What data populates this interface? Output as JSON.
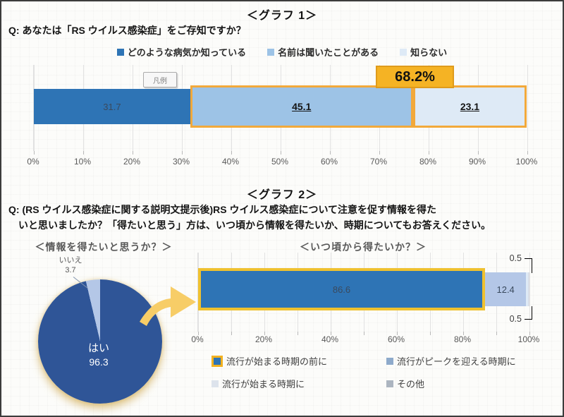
{
  "sections": {
    "graph1": {
      "heading": "＜グラフ 1＞",
      "question": "Q: あなたは「RS ウイルス感染症」をご存知ですか？",
      "legend_box_label": "凡例"
    },
    "graph2": {
      "heading": "＜グラフ 2＞",
      "question": "Q: (RS ウイルス感染症に関する説明文提示後)RS ウイルス感染症について注意を促す情報を得た\n　いと思いましたか？「得たいと思う」方は、いつ頃から情報を得たいか、時期についてもお答えください。"
    }
  },
  "colors": {
    "dark_blue": "#2E74B5",
    "medium_blue": "#9DC3E6",
    "pale_blue": "#DEEAF6",
    "periwinkle": "#B4C7E7",
    "pie_navy": "#2F5597",
    "highlight_orange": "#F5B324",
    "highlight_border": "#F2A93B",
    "gold_arrow": "#F7CD67"
  },
  "chart_data": [
    {
      "type": "bar",
      "orientation": "horizontal-stacked",
      "title": "＜グラフ 1＞",
      "legend_position": "top",
      "xlim": [
        0,
        100
      ],
      "xticks": [
        "0%",
        "10%",
        "20%",
        "30%",
        "40%",
        "50%",
        "60%",
        "70%",
        "80%",
        "90%",
        "100%"
      ],
      "series": [
        {
          "name": "どのような病気か知っている",
          "value": 31.7,
          "label": "31.7",
          "color": "#2E74B5",
          "emphasis": false,
          "highlight": false
        },
        {
          "name": "名前は聞いたことがある",
          "value": 45.1,
          "label": "45.1",
          "color": "#9DC3E6",
          "emphasis": true,
          "highlight": true
        },
        {
          "name": "知らない",
          "value": 23.1,
          "label": "23.1",
          "color": "#DEEAF6",
          "emphasis": true,
          "highlight": true
        }
      ],
      "highlight": {
        "label": "68.2%",
        "covers": [
          "名前は聞いたことがある",
          "知らない"
        ],
        "fill": "#F5B324",
        "border": "#DF9B1C"
      }
    },
    {
      "type": "pie",
      "title": "＜情報を得たいと思うか？＞",
      "start_angle_deg": 0,
      "clockwise": true,
      "slices": [
        {
          "label": "はい",
          "value": 96.3,
          "color": "#2F5597",
          "label_position": "inside"
        },
        {
          "label": "いいえ",
          "value": 3.7,
          "color": "#B4C7E7",
          "label_position": "outside-top"
        }
      ]
    },
    {
      "type": "bar",
      "orientation": "horizontal-stacked",
      "title": "＜いつ頃から得たいか？＞",
      "legend_position": "bottom",
      "xlim": [
        0,
        100
      ],
      "xticks": [
        "0%",
        "20%",
        "40%",
        "60%",
        "80%",
        "100%"
      ],
      "segments": [
        {
          "value": 86.6,
          "label": "86.6",
          "color": "#2E74B5",
          "highlight": true
        },
        {
          "value": 12.4,
          "label": "12.4",
          "color": "#B4C7E7",
          "highlight": false
        },
        {
          "value": 0.5,
          "label": "0.5",
          "color": "#DEEAF6",
          "highlight": false,
          "callout": "top"
        },
        {
          "value": 0.5,
          "label": "0.5",
          "color": "#D9DEE8",
          "highlight": false,
          "callout": "bottom"
        }
      ],
      "legend": [
        {
          "label": "流行が始まる時期の前に",
          "marker_color": "#F2B120",
          "marker_fill": "#2E74B5"
        },
        {
          "label": "流行がピークを迎える時期に",
          "marker_color": "#8EAACB"
        },
        {
          "label": "流行が始まる時期に",
          "marker_color": "#DDE3EC"
        },
        {
          "label": "その他",
          "marker_color": "#ACB5C0"
        }
      ]
    }
  ]
}
